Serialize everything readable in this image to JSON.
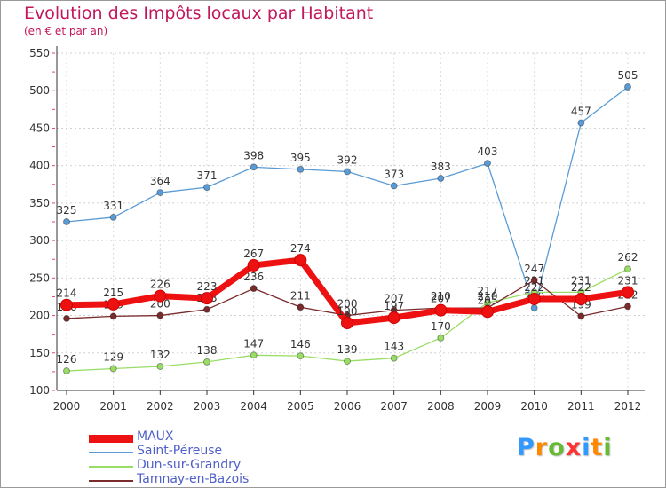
{
  "chart_data": {
    "type": "line",
    "title": "Evolution des Impôts locaux par Habitant",
    "subtitle": "(en € et par an)",
    "x": [
      "2000",
      "2001",
      "2002",
      "2003",
      "2004",
      "2005",
      "2006",
      "2007",
      "2008",
      "2009",
      "2010",
      "2011",
      "2012"
    ],
    "ylim": [
      100,
      550
    ],
    "yticks": [
      100,
      150,
      200,
      250,
      300,
      350,
      400,
      450,
      500,
      550
    ],
    "grid": true,
    "legend_position": "bottom-left",
    "series": [
      {
        "name": "Saint-Péreuse",
        "color": "#5b9bd5",
        "values": [
          325,
          331,
          364,
          371,
          398,
          395,
          392,
          373,
          383,
          403,
          210,
          457,
          505
        ],
        "labels": [
          "325",
          "331",
          "364",
          "371",
          "398",
          "395",
          "392",
          "373",
          "383",
          "403",
          "210",
          "457",
          "505"
        ]
      },
      {
        "name": "Dun-sur-Grandry",
        "color": "#99dd66",
        "values": [
          126,
          129,
          132,
          138,
          147,
          146,
          139,
          143,
          170,
          217,
          231,
          231,
          262
        ],
        "labels": [
          "126",
          "129",
          "132",
          "138",
          "147",
          "146",
          "139",
          "143",
          "170",
          "217",
          "231",
          "231",
          "262"
        ]
      },
      {
        "name": "Tamnay-en-Bazois",
        "color": "#7a2b2b",
        "values": [
          196,
          199,
          200,
          208,
          236,
          211,
          200,
          207,
          210,
          210,
          247,
          199,
          212
        ],
        "labels": [
          "196",
          "199",
          "200",
          "208",
          "236",
          "211",
          "200",
          "207",
          "210",
          "210",
          "247",
          "199",
          "212"
        ]
      },
      {
        "name": "MAUX",
        "color": "#ee1111",
        "values": [
          214,
          215,
          226,
          223,
          267,
          274,
          190,
          197,
          207,
          205,
          222,
          222,
          231
        ],
        "labels": [
          "214",
          "215",
          "226",
          "223",
          "267",
          "274",
          "190",
          "197",
          "207",
          "205",
          "222",
          "222",
          "231"
        ]
      }
    ],
    "legend_order": [
      "MAUX",
      "Saint-Péreuse",
      "Dun-sur-Grandry",
      "Tamnay-en-Bazois"
    ]
  },
  "logo": {
    "text": "Proxiti",
    "colors": [
      "#3399ff",
      "#ff8800",
      "#66bb33",
      "#ff3333",
      "#3399ff",
      "#ff8800",
      "#66bb33"
    ]
  }
}
